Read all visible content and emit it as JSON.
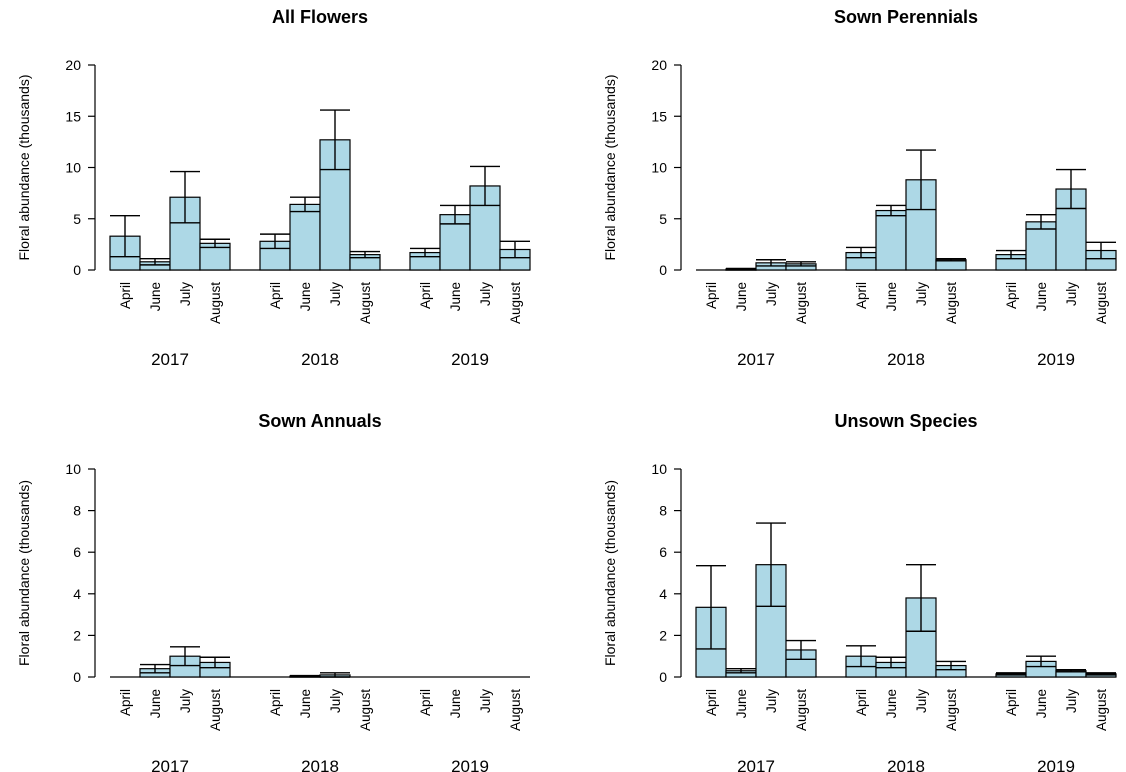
{
  "chart_data": [
    {
      "type": "bar",
      "title": "All Flowers",
      "ylabel": "Floral abundance (thousands)",
      "ylim": [
        0,
        20
      ],
      "yticks": [
        0,
        5,
        10,
        15,
        20
      ],
      "groups": [
        "2017",
        "2018",
        "2019"
      ],
      "months": [
        "April",
        "June",
        "July",
        "August"
      ],
      "values": [
        [
          3.3,
          0.8,
          7.1,
          2.6
        ],
        [
          2.8,
          6.4,
          12.7,
          1.5
        ],
        [
          1.7,
          5.4,
          8.2,
          2.0
        ]
      ],
      "errors": [
        [
          2.0,
          0.3,
          2.5,
          0.4
        ],
        [
          0.7,
          0.7,
          2.9,
          0.3
        ],
        [
          0.4,
          0.9,
          1.9,
          0.8
        ]
      ]
    },
    {
      "type": "bar",
      "title": "Sown Perennials",
      "ylabel": "Floral abundance (thousands)",
      "ylim": [
        0,
        20
      ],
      "yticks": [
        0,
        5,
        10,
        15,
        20
      ],
      "groups": [
        "2017",
        "2018",
        "2019"
      ],
      "months": [
        "April",
        "June",
        "July",
        "August"
      ],
      "values": [
        [
          0.0,
          0.1,
          0.7,
          0.6
        ],
        [
          1.7,
          5.8,
          8.8,
          1.0
        ],
        [
          1.5,
          4.7,
          7.9,
          1.9
        ]
      ],
      "errors": [
        [
          0.0,
          0.05,
          0.3,
          0.2
        ],
        [
          0.5,
          0.5,
          2.9,
          0.1
        ],
        [
          0.4,
          0.7,
          1.9,
          0.8
        ]
      ]
    },
    {
      "type": "bar",
      "title": "Sown Annuals",
      "ylabel": "Floral abundance (thousands)",
      "ylim": [
        0,
        10
      ],
      "yticks": [
        0,
        2,
        4,
        6,
        8,
        10
      ],
      "groups": [
        "2017",
        "2018",
        "2019"
      ],
      "months": [
        "April",
        "June",
        "July",
        "August"
      ],
      "values": [
        [
          0.0,
          0.4,
          1.0,
          0.7
        ],
        [
          0.0,
          0.05,
          0.1,
          0.0
        ],
        [
          0.0,
          0.0,
          0.0,
          0.0
        ]
      ],
      "errors": [
        [
          0.0,
          0.2,
          0.45,
          0.25
        ],
        [
          0.0,
          0.02,
          0.1,
          0.0
        ],
        [
          0.0,
          0.0,
          0.0,
          0.0
        ]
      ]
    },
    {
      "type": "bar",
      "title": "Unsown Species",
      "ylabel": "Floral abundance (thousands)",
      "ylim": [
        0,
        10
      ],
      "yticks": [
        0,
        2,
        4,
        6,
        8,
        10
      ],
      "groups": [
        "2017",
        "2018",
        "2019"
      ],
      "months": [
        "April",
        "June",
        "July",
        "August"
      ],
      "values": [
        [
          3.35,
          0.3,
          5.4,
          1.3
        ],
        [
          1.0,
          0.7,
          3.8,
          0.55
        ],
        [
          0.15,
          0.75,
          0.3,
          0.15
        ]
      ],
      "errors": [
        [
          2.0,
          0.1,
          2.0,
          0.45
        ],
        [
          0.5,
          0.25,
          1.6,
          0.2
        ],
        [
          0.05,
          0.25,
          0.05,
          0.05
        ]
      ]
    }
  ]
}
